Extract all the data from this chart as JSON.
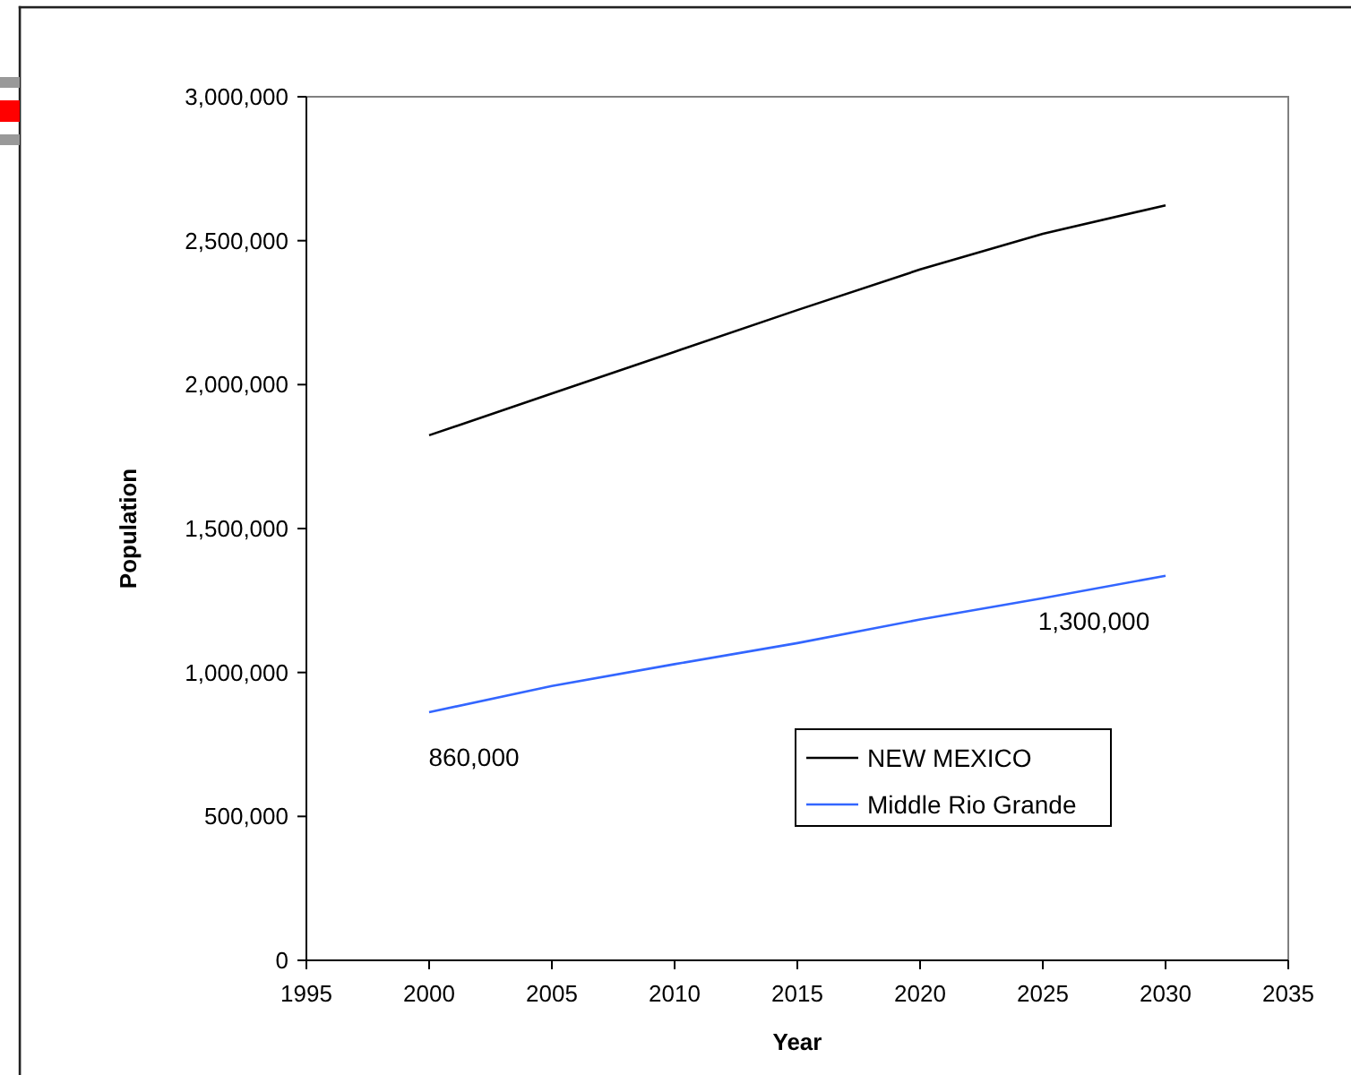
{
  "chart_data": {
    "type": "line",
    "xlabel": "Year",
    "ylabel": "Population",
    "x": [
      2000,
      2005,
      2010,
      2015,
      2020,
      2025,
      2030
    ],
    "series": [
      {
        "name": "NEW MEXICO",
        "color": "#000000",
        "values": [
          1824000,
          1969000,
          2114000,
          2259000,
          2400000,
          2524000,
          2623000
        ]
      },
      {
        "name": "Middle Rio Grande",
        "color": "#3366ff",
        "values": [
          862000,
          953000,
          1029000,
          1102000,
          1184000,
          1258000,
          1336000
        ]
      }
    ],
    "annotations": [
      {
        "text": "860,000",
        "x": 2000,
        "y": 862000
      },
      {
        "text": "1,300,000",
        "x": 2030,
        "y": 1336000
      }
    ],
    "xlim": [
      1995,
      2035
    ],
    "xticks": [
      1995,
      2000,
      2005,
      2010,
      2015,
      2020,
      2025,
      2030,
      2035
    ],
    "ylim": [
      0,
      3000000
    ],
    "yticks": [
      {
        "value": 0,
        "label": "0"
      },
      {
        "value": 500000,
        "label": "500,000"
      },
      {
        "value": 1000000,
        "label": "1,000,000"
      },
      {
        "value": 1500000,
        "label": "1,500,000"
      },
      {
        "value": 2000000,
        "label": "2,000,000"
      },
      {
        "value": 2500000,
        "label": "2,500,000"
      },
      {
        "value": 3000000,
        "label": "3,000,000"
      }
    ],
    "grid": false,
    "legend": "bottom right",
    "marker": "none",
    "line_style": "solid"
  }
}
